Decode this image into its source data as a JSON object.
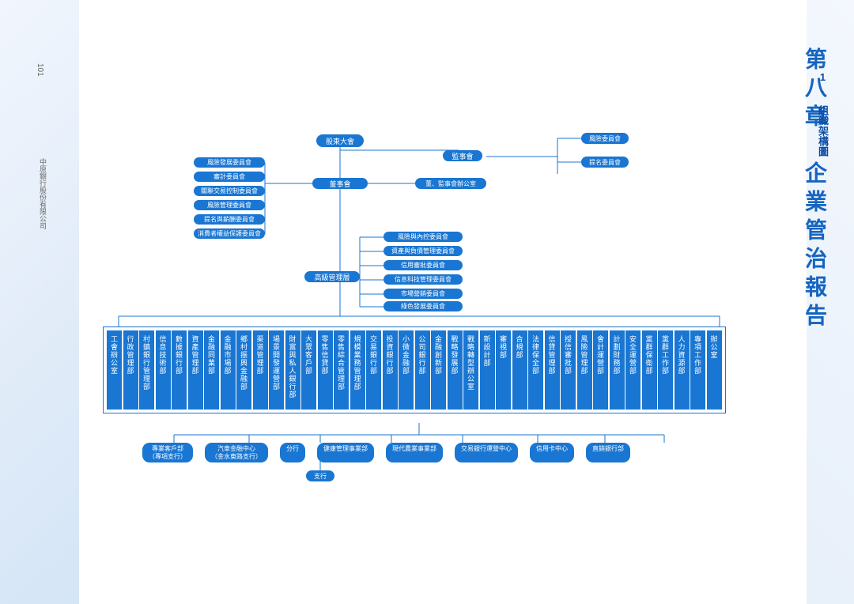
{
  "page": {
    "chapter_title": "第八章　企業管治報告",
    "section_number": "1.",
    "section_label": "組織架構圖",
    "footer": "中原銀行股份有限公司",
    "page_number": "101"
  },
  "org": {
    "root": "股東大會",
    "supervisory": "監事會",
    "sup_committees": [
      "風險委員會",
      "提名委員會"
    ],
    "board": "董事會",
    "board_office": "董、監事會辦公室",
    "board_committees": [
      "風險發展委員會",
      "審計委員會",
      "關聯交易控制委員會",
      "風險管理委員會",
      "提名與薪酬委員會",
      "消費者權益保護委員會"
    ],
    "senior_mgmt": "高級管理層",
    "mgmt_committees": [
      "風險與內控委員會",
      "資產與負債管理委員會",
      "信用審批委員會",
      "信息科技管理委員會",
      "市場營銷委員會",
      "綠色發展委員會"
    ],
    "departments": [
      "工會辦公室",
      "行政管理部",
      "村鎮銀行管理部",
      "信息技術部",
      "數據銀行部",
      "資產管理部",
      "金融同業部",
      "金融市場部",
      "鄉村振興金融部",
      "渠道管理部",
      "場景開發運營部",
      "財富與私人銀行部",
      "大眾客戶部",
      "零售信貸部",
      "零售綜合管理部",
      "規模業務管理部",
      "交易銀行部",
      "投資銀行部",
      "小微金融部",
      "公司銀行部",
      "金融創新部",
      "戰略發展部",
      "戰略轉型辦公室",
      "新設計部",
      "審視部",
      "合規部",
      "法律保全部",
      "信貸管理部",
      "授信審批部",
      "風險管理部",
      "會計運營部",
      "計劃財務部",
      "安全運營部",
      "黨群保衛部",
      "黨群工作部",
      "人力資源部",
      "專項工作部",
      "辦公室"
    ],
    "bottom_units": [
      {
        "label": "專業客戶部\n（專項支行）"
      },
      {
        "label": "汽車金融中心\n（金水東路支行）"
      },
      {
        "label": "分行"
      },
      {
        "label": "健康管理事業部"
      },
      {
        "label": "現代農業事業部"
      },
      {
        "label": "交易銀行運營中心"
      },
      {
        "label": "信用卡中心"
      },
      {
        "label": "直銷銀行部"
      }
    ],
    "sub_branch": "支行"
  },
  "style": {
    "primary_color": "#1976d2",
    "line_color": "#1976d2",
    "title_color": "#1565c0",
    "bg_gradient": [
      "#e8f0fc",
      "#b8d4f0"
    ]
  }
}
